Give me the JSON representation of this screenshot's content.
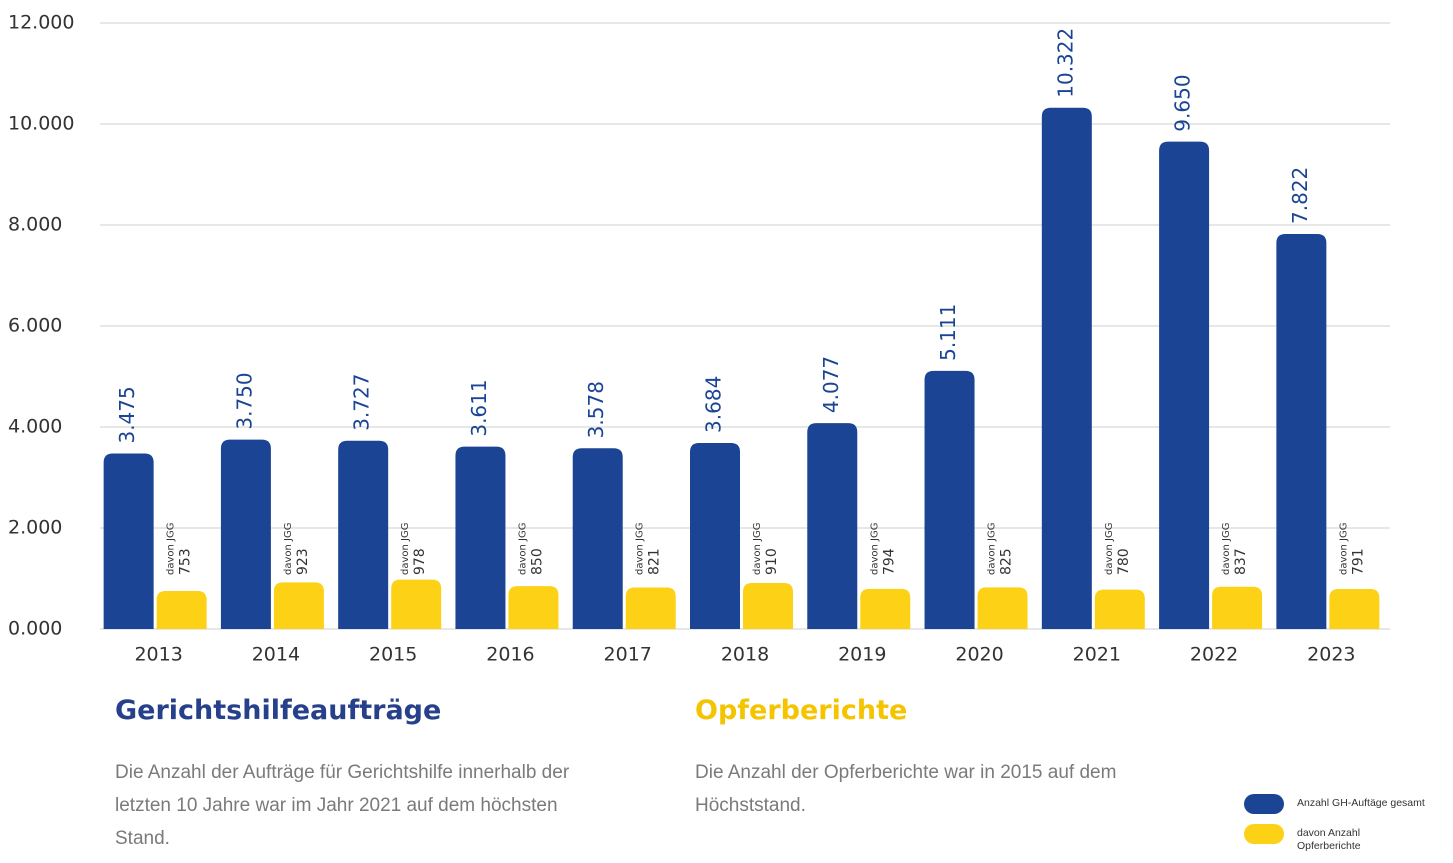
{
  "chart_data": {
    "type": "bar",
    "categories": [
      "2013",
      "2014",
      "2015",
      "2016",
      "2017",
      "2018",
      "2019",
      "2020",
      "2021",
      "2022",
      "2023"
    ],
    "series": [
      {
        "name": "Anzahl GH-Auftäge gesamt",
        "color": "#1b4594",
        "values": [
          3475,
          3750,
          3727,
          3611,
          3578,
          3684,
          4077,
          5111,
          10322,
          9650,
          7822
        ],
        "value_labels": [
          "3.475",
          "3.750",
          "3.727",
          "3.611",
          "3.578",
          "3.684",
          "4.077",
          "5.111",
          "10.322",
          "9.650",
          "7.822"
        ]
      },
      {
        "name": "davon Anzahl Opferberichte",
        "color": "#fdd116",
        "label_prefix": "davon JGG",
        "values": [
          753,
          923,
          978,
          850,
          821,
          910,
          794,
          825,
          780,
          837,
          791
        ]
      }
    ],
    "ylim": [
      0,
      12000
    ],
    "yticks": [
      {
        "value": 0,
        "label": "0.000"
      },
      {
        "value": 2000,
        "label": "2.000"
      },
      {
        "value": 4000,
        "label": "4.000"
      },
      {
        "value": 6000,
        "label": "6.000"
      },
      {
        "value": 8000,
        "label": "8.000"
      },
      {
        "value": 10000,
        "label": "10.000"
      },
      {
        "value": 12000,
        "label": "12.000"
      }
    ],
    "grid": true,
    "panels": [
      {
        "title": "Gerichtshilfeaufträge",
        "color": "#27408b",
        "text": "Die Anzahl der Aufträge für Gerichtshilfe innerhalb der letzten 10 Jahre war im Jahr 2021 auf dem höchsten Stand."
      },
      {
        "title": "Opferberichte",
        "color": "#f5c400",
        "text": "Die Anzahl der Opferberichte war  in 2015 auf dem Höchststand."
      }
    ]
  }
}
